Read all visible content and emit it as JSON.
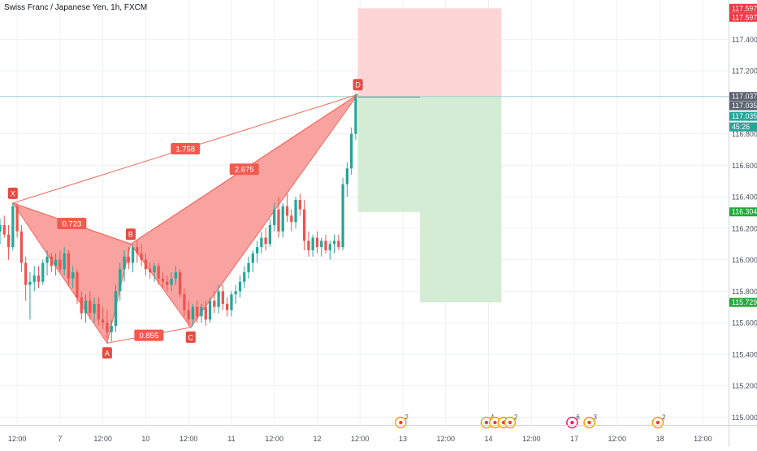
{
  "header": {
    "title": "Swiss Franc / Japanese Yen, 1h, FXCM"
  },
  "colors": {
    "up": "#26a69a",
    "down": "#ef5350",
    "pattern_fill": "#f8a39f",
    "pattern_line": "#f0695f",
    "stop_zone": "#fdd5d6",
    "target_zone": "#d4ecd4",
    "grid": "#eef0f3",
    "axis_text": "#4a4f5c",
    "hline": "#9ed0d3"
  },
  "chart_data": {
    "type": "candlestick",
    "symbol": "Swiss Franc / Japanese Yen",
    "interval": "1h",
    "source": "FXCM",
    "ylim": [
      114.95,
      117.65
    ],
    "x_range": [
      0,
      170
    ],
    "y_ticks": [
      "117.400",
      "117.200",
      "116.800",
      "116.600",
      "116.400",
      "116.200",
      "116.000",
      "115.800",
      "115.600",
      "115.400",
      "115.200",
      "115.000"
    ],
    "x_ticks": [
      {
        "x": 4,
        "label": "12:00"
      },
      {
        "x": 14,
        "label": "7"
      },
      {
        "x": 24,
        "label": "12:00"
      },
      {
        "x": 34,
        "label": "10"
      },
      {
        "x": 44,
        "label": "12:00"
      },
      {
        "x": 54,
        "label": "11"
      },
      {
        "x": 64,
        "label": "12:00"
      },
      {
        "x": 74,
        "label": "12"
      },
      {
        "x": 84,
        "label": "12:00"
      },
      {
        "x": 94,
        "label": "13"
      },
      {
        "x": 104,
        "label": "12:00"
      },
      {
        "x": 114,
        "label": "14"
      },
      {
        "x": 124,
        "label": "12:00"
      },
      {
        "x": 134,
        "label": "17"
      },
      {
        "x": 144,
        "label": "12:00"
      },
      {
        "x": 154,
        "label": "18"
      },
      {
        "x": 164,
        "label": "12:00"
      }
    ],
    "price_labels": [
      {
        "value": 117.597,
        "text": "117.597",
        "color": "#f23645"
      },
      {
        "value": 117.597,
        "text": "117.597",
        "color": "#f23645",
        "slot": 2
      },
      {
        "value": 117.037,
        "text": "117.037",
        "color": "#5a6270"
      },
      {
        "value": 117.035,
        "text": "117.035",
        "color": "#5a6270",
        "slot": 2
      },
      {
        "value": 117.035,
        "text": "117.035",
        "color": "#26a69a",
        "slot": 3
      },
      {
        "value": 117.035,
        "text": "45:26",
        "color": "#26a69a",
        "slot": 4
      },
      {
        "value": 116.304,
        "text": "116.304",
        "color": "#22ab3a"
      },
      {
        "value": 115.729,
        "text": "115.729",
        "color": "#22ab3a"
      }
    ],
    "horizontal_line": 117.037,
    "candles": [
      {
        "x": 0,
        "o": 116.18,
        "h": 116.26,
        "l": 116.1,
        "c": 116.22
      },
      {
        "x": 1,
        "o": 116.22,
        "h": 116.28,
        "l": 116.14,
        "c": 116.16
      },
      {
        "x": 2,
        "o": 116.16,
        "h": 116.22,
        "l": 116.0,
        "c": 116.08
      },
      {
        "x": 3,
        "o": 116.08,
        "h": 116.36,
        "l": 116.06,
        "c": 116.34
      },
      {
        "x": 4,
        "o": 116.34,
        "h": 116.36,
        "l": 116.14,
        "c": 116.18
      },
      {
        "x": 5,
        "o": 116.18,
        "h": 116.22,
        "l": 115.92,
        "c": 115.98
      },
      {
        "x": 6,
        "o": 115.98,
        "h": 116.02,
        "l": 115.74,
        "c": 115.84
      },
      {
        "x": 7,
        "o": 115.84,
        "h": 115.92,
        "l": 115.62,
        "c": 115.86
      },
      {
        "x": 8,
        "o": 115.86,
        "h": 115.96,
        "l": 115.8,
        "c": 115.9
      },
      {
        "x": 9,
        "o": 115.9,
        "h": 115.96,
        "l": 115.82,
        "c": 115.86
      },
      {
        "x": 10,
        "o": 115.86,
        "h": 116.0,
        "l": 115.84,
        "c": 115.98
      },
      {
        "x": 11,
        "o": 115.98,
        "h": 116.06,
        "l": 115.9,
        "c": 116.02
      },
      {
        "x": 12,
        "o": 116.02,
        "h": 116.04,
        "l": 115.92,
        "c": 115.96
      },
      {
        "x": 13,
        "o": 115.96,
        "h": 116.04,
        "l": 115.9,
        "c": 116.0
      },
      {
        "x": 14,
        "o": 116.0,
        "h": 116.06,
        "l": 115.92,
        "c": 115.94
      },
      {
        "x": 15,
        "o": 115.94,
        "h": 116.08,
        "l": 115.9,
        "c": 116.04
      },
      {
        "x": 16,
        "o": 116.04,
        "h": 116.06,
        "l": 115.84,
        "c": 115.88
      },
      {
        "x": 17,
        "o": 115.88,
        "h": 115.96,
        "l": 115.82,
        "c": 115.92
      },
      {
        "x": 18,
        "o": 115.92,
        "h": 115.94,
        "l": 115.72,
        "c": 115.76
      },
      {
        "x": 19,
        "o": 115.76,
        "h": 115.8,
        "l": 115.62,
        "c": 115.66
      },
      {
        "x": 20,
        "o": 115.66,
        "h": 115.78,
        "l": 115.6,
        "c": 115.74
      },
      {
        "x": 21,
        "o": 115.74,
        "h": 115.8,
        "l": 115.62,
        "c": 115.66
      },
      {
        "x": 22,
        "o": 115.66,
        "h": 115.76,
        "l": 115.6,
        "c": 115.72
      },
      {
        "x": 23,
        "o": 115.72,
        "h": 115.76,
        "l": 115.58,
        "c": 115.62
      },
      {
        "x": 24,
        "o": 115.62,
        "h": 115.7,
        "l": 115.56,
        "c": 115.6
      },
      {
        "x": 25,
        "o": 115.6,
        "h": 115.68,
        "l": 115.5,
        "c": 115.54
      },
      {
        "x": 26,
        "o": 115.54,
        "h": 115.62,
        "l": 115.48,
        "c": 115.58
      },
      {
        "x": 27,
        "o": 115.58,
        "h": 115.84,
        "l": 115.54,
        "c": 115.8
      },
      {
        "x": 28,
        "o": 115.8,
        "h": 115.98,
        "l": 115.74,
        "c": 115.94
      },
      {
        "x": 29,
        "o": 115.94,
        "h": 116.06,
        "l": 115.86,
        "c": 116.02
      },
      {
        "x": 30,
        "o": 116.02,
        "h": 116.08,
        "l": 115.94,
        "c": 115.98
      },
      {
        "x": 31,
        "o": 115.98,
        "h": 116.1,
        "l": 115.92,
        "c": 116.08
      },
      {
        "x": 32,
        "o": 116.08,
        "h": 116.12,
        "l": 115.98,
        "c": 116.04
      },
      {
        "x": 33,
        "o": 116.04,
        "h": 116.1,
        "l": 115.96,
        "c": 116.0
      },
      {
        "x": 34,
        "o": 116.0,
        "h": 116.04,
        "l": 115.9,
        "c": 115.94
      },
      {
        "x": 35,
        "o": 115.94,
        "h": 115.98,
        "l": 115.88,
        "c": 115.92
      },
      {
        "x": 36,
        "o": 115.92,
        "h": 115.98,
        "l": 115.86,
        "c": 115.96
      },
      {
        "x": 37,
        "o": 115.96,
        "h": 115.98,
        "l": 115.84,
        "c": 115.88
      },
      {
        "x": 38,
        "o": 115.88,
        "h": 115.92,
        "l": 115.82,
        "c": 115.86
      },
      {
        "x": 39,
        "o": 115.86,
        "h": 115.9,
        "l": 115.8,
        "c": 115.84
      },
      {
        "x": 40,
        "o": 115.84,
        "h": 115.92,
        "l": 115.8,
        "c": 115.88
      },
      {
        "x": 41,
        "o": 115.88,
        "h": 115.96,
        "l": 115.84,
        "c": 115.92
      },
      {
        "x": 42,
        "o": 115.92,
        "h": 115.94,
        "l": 115.76,
        "c": 115.78
      },
      {
        "x": 43,
        "o": 115.78,
        "h": 115.82,
        "l": 115.64,
        "c": 115.68
      },
      {
        "x": 44,
        "o": 115.68,
        "h": 115.74,
        "l": 115.58,
        "c": 115.62
      },
      {
        "x": 45,
        "o": 115.62,
        "h": 115.72,
        "l": 115.58,
        "c": 115.7
      },
      {
        "x": 46,
        "o": 115.7,
        "h": 115.74,
        "l": 115.6,
        "c": 115.64
      },
      {
        "x": 47,
        "o": 115.64,
        "h": 115.72,
        "l": 115.6,
        "c": 115.7
      },
      {
        "x": 48,
        "o": 115.7,
        "h": 115.74,
        "l": 115.58,
        "c": 115.62
      },
      {
        "x": 49,
        "o": 115.62,
        "h": 115.76,
        "l": 115.6,
        "c": 115.74
      },
      {
        "x": 50,
        "o": 115.74,
        "h": 115.8,
        "l": 115.66,
        "c": 115.7
      },
      {
        "x": 51,
        "o": 115.7,
        "h": 115.84,
        "l": 115.66,
        "c": 115.8
      },
      {
        "x": 52,
        "o": 115.8,
        "h": 115.84,
        "l": 115.68,
        "c": 115.72
      },
      {
        "x": 53,
        "o": 115.72,
        "h": 115.76,
        "l": 115.64,
        "c": 115.68
      },
      {
        "x": 54,
        "o": 115.68,
        "h": 115.8,
        "l": 115.64,
        "c": 115.78
      },
      {
        "x": 55,
        "o": 115.78,
        "h": 115.84,
        "l": 115.72,
        "c": 115.8
      },
      {
        "x": 56,
        "o": 115.8,
        "h": 115.9,
        "l": 115.76,
        "c": 115.86
      },
      {
        "x": 57,
        "o": 115.86,
        "h": 115.96,
        "l": 115.82,
        "c": 115.92
      },
      {
        "x": 58,
        "o": 115.92,
        "h": 116.02,
        "l": 115.88,
        "c": 115.98
      },
      {
        "x": 59,
        "o": 115.98,
        "h": 116.06,
        "l": 115.92,
        "c": 116.04
      },
      {
        "x": 60,
        "o": 116.04,
        "h": 116.12,
        "l": 115.98,
        "c": 116.08
      },
      {
        "x": 61,
        "o": 116.08,
        "h": 116.18,
        "l": 116.04,
        "c": 116.14
      },
      {
        "x": 62,
        "o": 116.14,
        "h": 116.2,
        "l": 116.06,
        "c": 116.1
      },
      {
        "x": 63,
        "o": 116.1,
        "h": 116.26,
        "l": 116.08,
        "c": 116.22
      },
      {
        "x": 64,
        "o": 116.22,
        "h": 116.36,
        "l": 116.18,
        "c": 116.32
      },
      {
        "x": 65,
        "o": 116.32,
        "h": 116.4,
        "l": 116.14,
        "c": 116.18
      },
      {
        "x": 66,
        "o": 116.18,
        "h": 116.36,
        "l": 116.14,
        "c": 116.34
      },
      {
        "x": 67,
        "o": 116.34,
        "h": 116.42,
        "l": 116.24,
        "c": 116.28
      },
      {
        "x": 68,
        "o": 116.28,
        "h": 116.32,
        "l": 116.18,
        "c": 116.24
      },
      {
        "x": 69,
        "o": 116.24,
        "h": 116.4,
        "l": 116.2,
        "c": 116.38
      },
      {
        "x": 70,
        "o": 116.38,
        "h": 116.42,
        "l": 116.28,
        "c": 116.32
      },
      {
        "x": 71,
        "o": 116.32,
        "h": 116.38,
        "l": 116.06,
        "c": 116.12
      },
      {
        "x": 72,
        "o": 116.12,
        "h": 116.18,
        "l": 116.02,
        "c": 116.06
      },
      {
        "x": 73,
        "o": 116.06,
        "h": 116.16,
        "l": 116.02,
        "c": 116.14
      },
      {
        "x": 74,
        "o": 116.14,
        "h": 116.18,
        "l": 116.04,
        "c": 116.08
      },
      {
        "x": 75,
        "o": 116.08,
        "h": 116.14,
        "l": 116.02,
        "c": 116.12
      },
      {
        "x": 76,
        "o": 116.12,
        "h": 116.16,
        "l": 116.04,
        "c": 116.06
      },
      {
        "x": 77,
        "o": 116.06,
        "h": 116.12,
        "l": 116.0,
        "c": 116.1
      },
      {
        "x": 78,
        "o": 116.1,
        "h": 116.16,
        "l": 116.04,
        "c": 116.12
      },
      {
        "x": 79,
        "o": 116.12,
        "h": 116.16,
        "l": 116.06,
        "c": 116.08
      },
      {
        "x": 80,
        "o": 116.08,
        "h": 116.52,
        "l": 116.06,
        "c": 116.48
      },
      {
        "x": 81,
        "o": 116.48,
        "h": 116.62,
        "l": 116.4,
        "c": 116.58
      },
      {
        "x": 82,
        "o": 116.58,
        "h": 116.84,
        "l": 116.54,
        "c": 116.8
      },
      {
        "x": 83,
        "o": 116.8,
        "h": 117.06,
        "l": 116.76,
        "c": 117.035
      }
    ],
    "harmonic_pattern": {
      "points": [
        {
          "label": "X",
          "x": 3,
          "y": 116.36
        },
        {
          "label": "A",
          "x": 25,
          "y": 115.47
        },
        {
          "label": "B",
          "x": 30.5,
          "y": 116.1
        },
        {
          "label": "C",
          "x": 44.5,
          "y": 115.57
        },
        {
          "label": "D",
          "x": 83.5,
          "y": 117.05
        }
      ],
      "ratios": [
        {
          "label": "0.723",
          "between": "XB"
        },
        {
          "label": "0.855",
          "between": "AC"
        },
        {
          "label": "2.675",
          "between": "BD"
        },
        {
          "label": "1.758",
          "between": "XD"
        }
      ]
    },
    "position": {
      "x_start": 83.5,
      "x_end": 117,
      "entry": 117.037,
      "stop": 117.597,
      "target_top": 116.304,
      "target_split_x": 98,
      "target_bottom": 115.729
    },
    "events": [
      {
        "x": 93.5,
        "count": "2",
        "kind": "flag"
      },
      {
        "x": 113.5,
        "count": "4",
        "kind": "flag"
      },
      {
        "x": 115.5,
        "count": "",
        "kind": "flag"
      },
      {
        "x": 117.5,
        "count": "",
        "kind": "flag"
      },
      {
        "x": 119,
        "count": "2",
        "kind": "flag"
      },
      {
        "x": 133.5,
        "count": "6",
        "kind": "record"
      },
      {
        "x": 137.5,
        "count": "3",
        "kind": "flag"
      },
      {
        "x": 153.5,
        "count": "2",
        "kind": "flag"
      }
    ]
  }
}
